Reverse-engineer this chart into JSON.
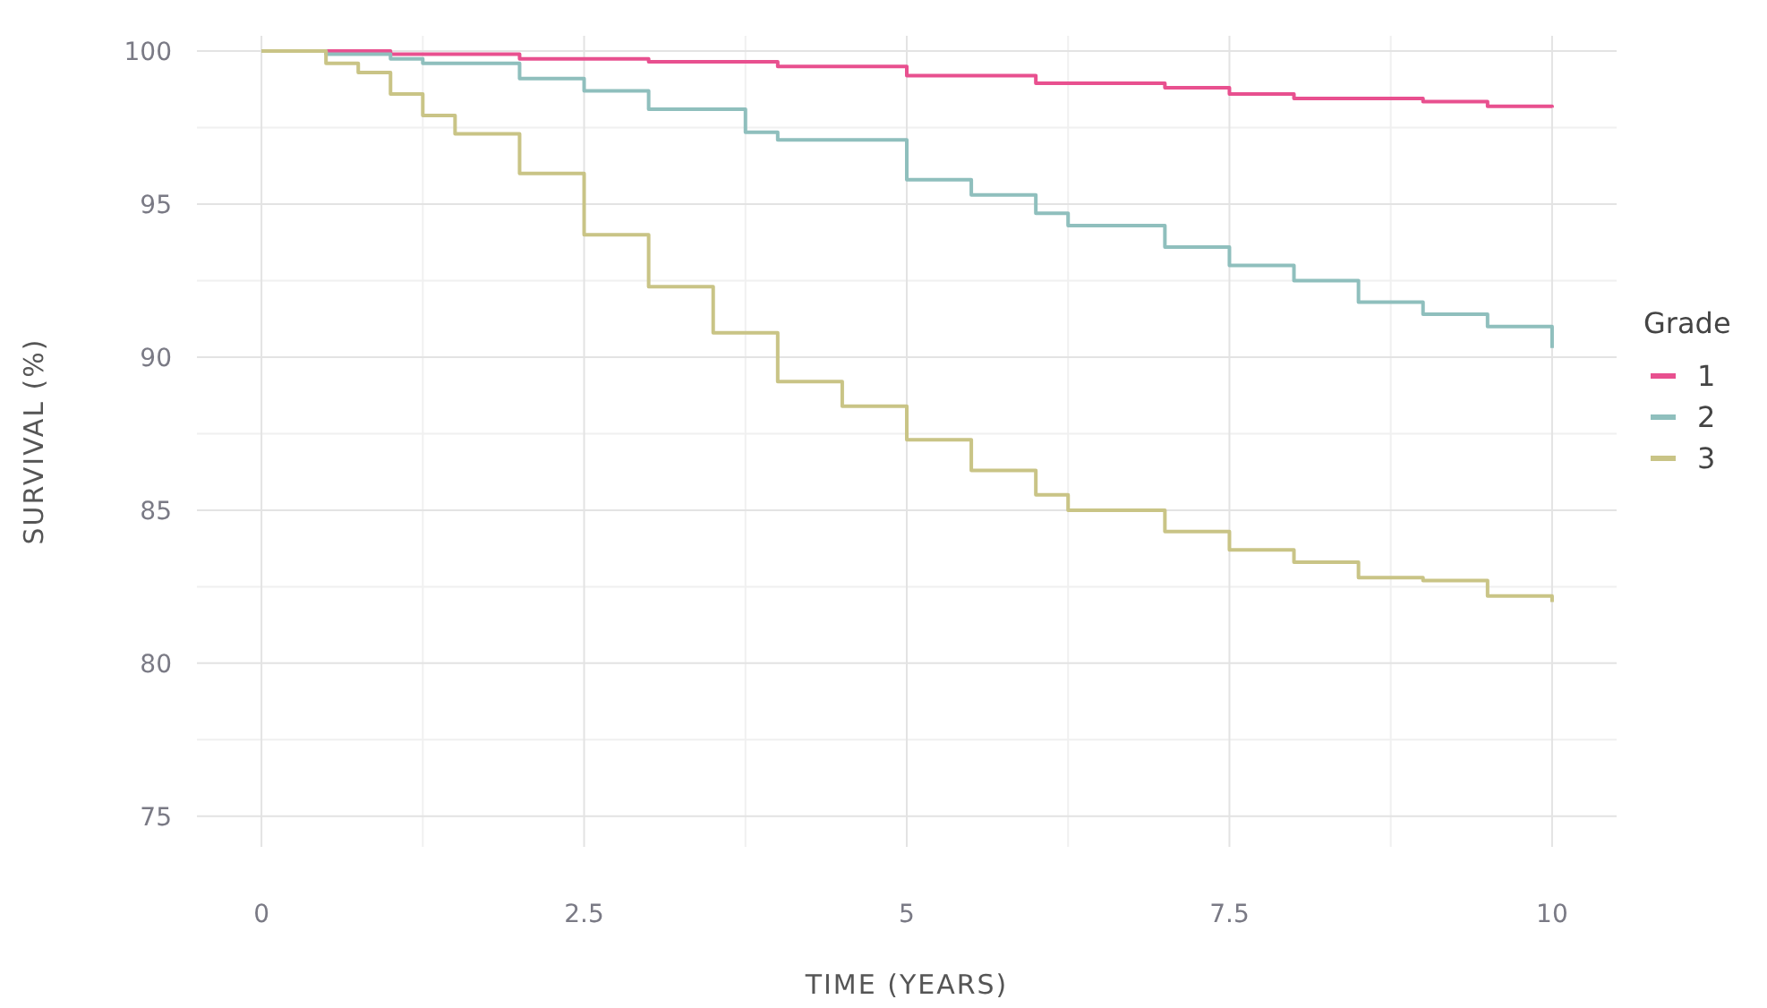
{
  "chart_data": {
    "type": "step",
    "xlabel": "TIME (YEARS)",
    "ylabel": "SURVIVAL (%)",
    "legend_title": "Grade",
    "legend": "right",
    "grid": true,
    "line_style": "solid",
    "xlim": [
      -0.5,
      10.5
    ],
    "xticks": [
      0,
      2.5,
      5,
      7.5,
      10
    ],
    "ylim": [
      74,
      100.5
    ],
    "yticks": [
      75,
      80,
      85,
      90,
      95,
      100
    ],
    "series": [
      {
        "name": "1",
        "color": "#e8508f",
        "x": [
          0,
          1,
          2,
          3,
          4,
          5,
          6,
          7,
          7.5,
          8,
          9,
          9.5,
          10
        ],
        "values": [
          100,
          99.9,
          99.75,
          99.65,
          99.5,
          99.2,
          98.95,
          98.8,
          98.6,
          98.45,
          98.35,
          98.2,
          98.15
        ]
      },
      {
        "name": "2",
        "color": "#8fbfbd",
        "x": [
          0,
          0.5,
          1,
          1.25,
          2,
          2.5,
          3,
          3.75,
          4,
          5,
          5.5,
          6,
          6.25,
          7,
          7.5,
          8,
          8.5,
          9,
          9.5,
          10
        ],
        "values": [
          100,
          99.9,
          99.75,
          99.6,
          99.1,
          98.7,
          98.1,
          97.35,
          97.1,
          95.8,
          95.3,
          94.7,
          94.3,
          93.6,
          93,
          92.5,
          91.8,
          91.4,
          91,
          90.3
        ]
      },
      {
        "name": "3",
        "color": "#c9c486",
        "x": [
          0,
          0.5,
          0.75,
          1,
          1.25,
          1.5,
          2,
          2.5,
          3,
          3.5,
          4,
          4.5,
          5,
          5.5,
          6,
          6.25,
          7,
          7.5,
          8,
          8.5,
          9,
          9.5,
          10
        ],
        "values": [
          100,
          99.6,
          99.3,
          98.6,
          97.9,
          97.3,
          96,
          94,
          92.3,
          90.8,
          89.2,
          88.4,
          87.3,
          86.3,
          85.5,
          85,
          84.3,
          83.7,
          83.3,
          82.8,
          82.7,
          82.2,
          82
        ]
      }
    ]
  }
}
